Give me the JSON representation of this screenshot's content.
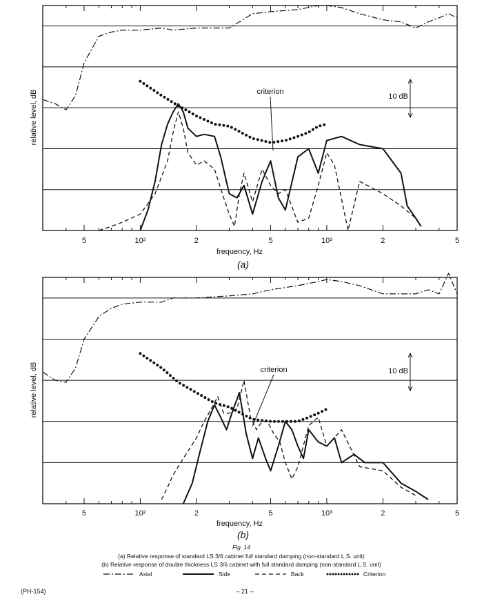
{
  "figure": {
    "fig_label": "Fig. 14",
    "caption_a": "(a) Relative response of standard LS 3/6 cabinet full standard damping (non-standard L.S. unit)",
    "caption_b": "(b) Relative response of double thickness LS 3/6 cabinet with full standard damping (non-standard L.S. unit)",
    "legend": [
      {
        "label": "Axial",
        "style": "dashdot"
      },
      {
        "label": "Side",
        "style": "solid"
      },
      {
        "label": "Back",
        "style": "dashed"
      },
      {
        "label": "Criterion",
        "style": "dotted"
      }
    ],
    "footer_left": "(PH-154)",
    "footer_center": "– 21 –"
  },
  "chart_data": [
    {
      "type": "line",
      "panel_label": "(a)",
      "xlabel": "frequency, Hz",
      "ylabel": "relative level, dB",
      "x_scale": "log",
      "xlim": [
        30,
        5000
      ],
      "ylim": [
        0,
        55
      ],
      "x_ticks": [
        {
          "value": 50,
          "label": "5"
        },
        {
          "value": 100,
          "label": "10²"
        },
        {
          "value": 200,
          "label": "2"
        },
        {
          "value": 500,
          "label": "5"
        },
        {
          "value": 1000,
          "label": "10³"
        },
        {
          "value": 2000,
          "label": "2"
        },
        {
          "value": 5000,
          "label": "5"
        }
      ],
      "gridlines_y": [
        10,
        20,
        30,
        40,
        50
      ],
      "scale_bar_label": "10 dB",
      "annotation": "criterion",
      "series": [
        {
          "name": "Axial",
          "style": "dashdot",
          "x": [
            30,
            35,
            40,
            45,
            50,
            60,
            70,
            80,
            100,
            130,
            150,
            200,
            250,
            300,
            400,
            500,
            700,
            900,
            1000,
            1200,
            1500,
            2000,
            2500,
            3000,
            3500,
            4000,
            4500,
            5000
          ],
          "y": [
            32,
            31,
            29.5,
            33,
            41,
            47.5,
            48.5,
            49,
            49,
            49.5,
            49,
            49.5,
            49.5,
            49.5,
            53,
            53.5,
            54,
            55,
            55,
            54.5,
            53,
            51.5,
            51,
            49.5,
            51,
            52,
            53,
            52
          ]
        },
        {
          "name": "Side",
          "style": "solid",
          "x": [
            100,
            110,
            120,
            130,
            140,
            150,
            160,
            170,
            180,
            200,
            220,
            250,
            270,
            300,
            330,
            360,
            400,
            450,
            500,
            550,
            600,
            700,
            800,
            900,
            1000,
            1200,
            1500,
            2000,
            2500,
            2700,
            3000,
            3200
          ],
          "y": [
            0,
            5,
            12,
            21,
            26,
            29,
            31,
            29,
            25,
            23,
            23.5,
            23,
            18,
            9,
            8,
            11,
            4,
            12,
            17,
            8,
            5,
            18,
            20,
            14,
            22,
            23,
            21,
            20,
            14,
            6,
            3,
            1
          ]
        },
        {
          "name": "Back",
          "style": "dashed",
          "x": [
            60,
            70,
            80,
            100,
            120,
            140,
            150,
            160,
            170,
            180,
            200,
            220,
            250,
            280,
            300,
            320,
            340,
            360,
            400,
            450,
            500,
            550,
            600,
            700,
            800,
            900,
            1000,
            1100,
            1300,
            1500,
            2000,
            2500,
            3000
          ],
          "y": [
            0,
            1,
            2,
            4,
            9,
            17,
            24,
            29,
            25,
            19,
            16,
            17,
            15,
            8,
            4,
            1,
            9,
            14,
            7,
            15,
            11,
            9,
            10,
            2,
            3,
            11,
            19,
            16,
            0,
            12,
            9,
            6,
            3
          ]
        },
        {
          "name": "Criterion",
          "style": "dotted",
          "x": [
            100,
            130,
            160,
            200,
            250,
            300,
            400,
            500,
            600,
            700,
            800,
            900,
            1000
          ],
          "y": [
            36.5,
            33,
            30.5,
            28,
            26,
            25.5,
            22.5,
            21.5,
            22,
            23,
            24,
            25.5,
            26
          ]
        }
      ]
    },
    {
      "type": "line",
      "panel_label": "(b)",
      "xlabel": "frequency, Hz",
      "ylabel": "relative level, dB",
      "x_scale": "log",
      "xlim": [
        30,
        5000
      ],
      "ylim": [
        0,
        55
      ],
      "x_ticks": [
        {
          "value": 50,
          "label": "5"
        },
        {
          "value": 100,
          "label": "10²"
        },
        {
          "value": 200,
          "label": "2"
        },
        {
          "value": 500,
          "label": "5"
        },
        {
          "value": 1000,
          "label": "10³"
        },
        {
          "value": 2000,
          "label": "2"
        },
        {
          "value": 5000,
          "label": "5"
        }
      ],
      "gridlines_y": [
        10,
        20,
        30,
        40,
        50
      ],
      "scale_bar_label": "10 dB",
      "annotation": "criterion",
      "series": [
        {
          "name": "Axial",
          "style": "dashdot",
          "x": [
            30,
            35,
            40,
            45,
            50,
            60,
            70,
            80,
            100,
            130,
            150,
            200,
            300,
            400,
            500,
            700,
            900,
            1000,
            1200,
            1500,
            2000,
            2500,
            3000,
            3500,
            4000,
            4500,
            5000
          ],
          "y": [
            32,
            30,
            29.5,
            33,
            40,
            45.5,
            47.5,
            48.5,
            49,
            49,
            50,
            50,
            50.5,
            51,
            52,
            53,
            54,
            54.5,
            54,
            53,
            51,
            51,
            51,
            52,
            51,
            56,
            51
          ]
        },
        {
          "name": "Side",
          "style": "solid",
          "x": [
            170,
            190,
            210,
            230,
            250,
            270,
            290,
            310,
            340,
            370,
            400,
            430,
            470,
            500,
            550,
            600,
            650,
            700,
            750,
            800,
            900,
            1000,
            1100,
            1200,
            1400,
            1600,
            2000,
            2500,
            3000,
            3500
          ],
          "y": [
            0,
            5,
            13,
            20,
            24,
            21,
            18,
            22,
            27,
            17,
            11,
            16,
            11,
            8,
            14,
            20,
            18,
            14,
            11,
            18,
            15,
            14,
            16,
            10,
            12,
            10,
            10,
            5,
            3,
            1
          ]
        },
        {
          "name": "Back",
          "style": "dashed",
          "x": [
            130,
            140,
            150,
            170,
            200,
            220,
            240,
            260,
            280,
            300,
            330,
            360,
            390,
            420,
            450,
            480,
            520,
            560,
            600,
            650,
            700,
            800,
            900,
            1000,
            1200,
            1500,
            2000,
            2500,
            3000
          ],
          "y": [
            1,
            4,
            7,
            11,
            16,
            20,
            23,
            26,
            22,
            22,
            23,
            30,
            21,
            18,
            20,
            20,
            17,
            15,
            10,
            6,
            9,
            19,
            21,
            14,
            18,
            9,
            8,
            4,
            2
          ]
        },
        {
          "name": "Criterion",
          "style": "dotted",
          "x": [
            100,
            130,
            160,
            200,
            250,
            300,
            400,
            500,
            600,
            700,
            800,
            900,
            1000
          ],
          "y": [
            36.5,
            33,
            29.5,
            27,
            24.5,
            23.5,
            20.5,
            20,
            20,
            20,
            21,
            22,
            23
          ]
        }
      ]
    }
  ]
}
